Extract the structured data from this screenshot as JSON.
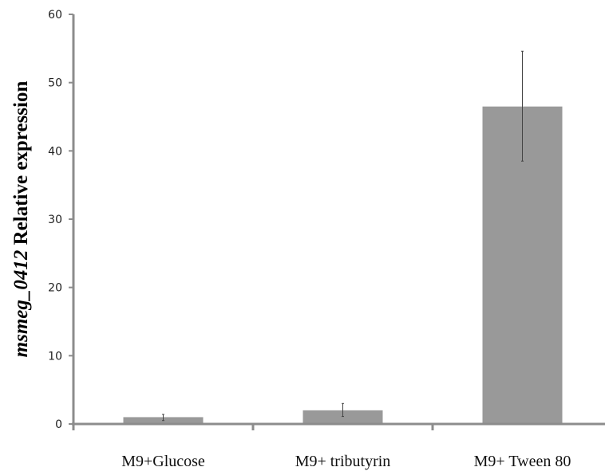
{
  "chart_data": {
    "type": "bar",
    "categories": [
      "M9+Glucose",
      "M9+ tributyrin",
      "M9+ Tween 80"
    ],
    "values": [
      1.0,
      2.0,
      46.5
    ],
    "error_bars": [
      {
        "low": 0.5,
        "high": 1.4
      },
      {
        "low": 1.1,
        "high": 3.0
      },
      {
        "low": 38.5,
        "high": 54.6
      }
    ],
    "ylim": [
      0,
      60
    ],
    "yticks": [
      0,
      10,
      20,
      30,
      40,
      50,
      60
    ],
    "ylabel_gene": "msmeg_0412",
    "ylabel_rest": " Relative expression",
    "xlabel": "",
    "title": "",
    "grid": false,
    "legend": "none",
    "colors": {
      "bar": "#999999",
      "axis": "#8c8c8c",
      "error": "#444444"
    }
  }
}
